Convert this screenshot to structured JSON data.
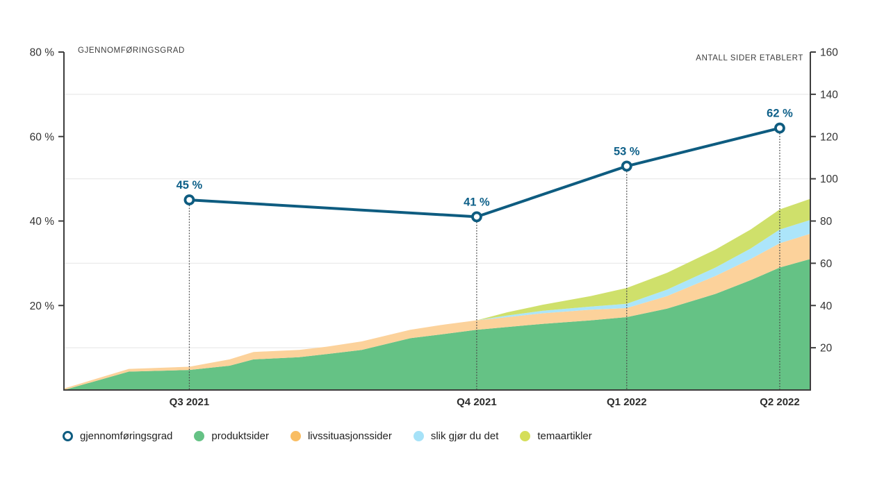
{
  "colors": {
    "line": "#0e5c80",
    "point_label": "#0e6089",
    "grid": "#eaeaea",
    "axis": "#3d3d3d",
    "tick_text": "#333333",
    "quarter_text": "#2b2b2b",
    "dotted_guide": "#4a4a4a"
  },
  "legend": {
    "items": [
      {
        "label": "gjennomføringsgrad",
        "marker": "ring",
        "color": "#0e5c80"
      },
      {
        "label": "produktsider",
        "marker": "dot",
        "color": "#65c285"
      },
      {
        "label": "livssituasjonssider",
        "marker": "dot",
        "color": "#f9bd62"
      },
      {
        "label": "slik gjør du det",
        "marker": "dot",
        "color": "#a6e2f8"
      },
      {
        "label": "temaartikler",
        "marker": "dot",
        "color": "#d5de5a"
      }
    ]
  },
  "chart_data": {
    "type": "area",
    "subtype": "stacked-area-with-line",
    "title": "",
    "grid": "on",
    "legend_position": "bottom",
    "x_axis": {
      "categories": [
        "Q3 2021",
        "Q4 2021",
        "Q1 2022",
        "Q2 2022"
      ],
      "category_positions": [
        0.168,
        0.553,
        0.754,
        0.959
      ]
    },
    "left_axis": {
      "title": "GJENNOMFØRINGSGRAD",
      "unit": "%",
      "max": 80,
      "min": 0,
      "tick_values": [
        80,
        60,
        40,
        20
      ],
      "tick_labels": [
        "80 %",
        "60 %",
        "40 %",
        "20 %"
      ],
      "gridline_values": [
        70,
        50,
        30,
        10
      ]
    },
    "right_axis": {
      "title": "ANTALL SIDER ETABLERT",
      "max": 160,
      "min": 0,
      "tick_values": [
        160,
        140,
        120,
        100,
        80,
        60,
        40,
        20
      ],
      "tick_labels": [
        "160",
        "140",
        "120",
        "100",
        "80",
        "60",
        "40",
        "20"
      ]
    },
    "line_series": {
      "name": "gjennomføringsgrad",
      "axis": "left",
      "color": "#0e5c80",
      "x": [
        0.168,
        0.553,
        0.754,
        0.959
      ],
      "values": [
        45,
        41,
        53,
        62
      ],
      "labels": [
        "45 %",
        "41 %",
        "53 %",
        "62 %"
      ]
    },
    "area_series": {
      "axis": "right",
      "x": [
        0,
        0.087,
        0.168,
        0.222,
        0.254,
        0.315,
        0.352,
        0.399,
        0.464,
        0.51,
        0.553,
        0.594,
        0.641,
        0.706,
        0.754,
        0.808,
        0.873,
        0.92,
        0.959,
        1.0
      ],
      "series": [
        {
          "name": "produktsider",
          "color": "#65c285",
          "fill": "#65c285",
          "values": [
            0,
            8.7,
            9.5,
            11.5,
            14.5,
            15.5,
            17,
            19,
            24.5,
            26.5,
            28.5,
            29.8,
            31.3,
            33,
            34.5,
            38.5,
            45.5,
            52,
            58,
            62
          ]
        },
        {
          "name": "livssituasjonssider",
          "color": "#f9bd62",
          "fill": "#fcd29b",
          "values": [
            0.7,
            1.3,
            1.5,
            3,
            3.5,
            3.5,
            3.5,
            4,
            4,
            4.5,
            4.5,
            4.7,
            5,
            5,
            4.3,
            6,
            8.5,
            10,
            11.5,
            12
          ]
        },
        {
          "name": "slik gjør du det",
          "color": "#a6e2f8",
          "fill": "#ace5fa",
          "values": [
            0,
            0,
            0,
            0,
            0,
            0,
            0,
            0,
            0,
            0,
            0,
            0.8,
            1.2,
            1.5,
            2,
            3,
            4,
            5,
            6.5,
            6.5
          ]
        },
        {
          "name": "temaartikler",
          "color": "#d5de5a",
          "fill": "#cfe06b",
          "values": [
            0,
            0,
            0,
            0,
            0,
            0,
            0,
            0,
            0,
            0,
            0,
            1.5,
            2.8,
            5,
            7.5,
            8,
            8.5,
            9,
            9.5,
            10
          ]
        }
      ]
    }
  }
}
